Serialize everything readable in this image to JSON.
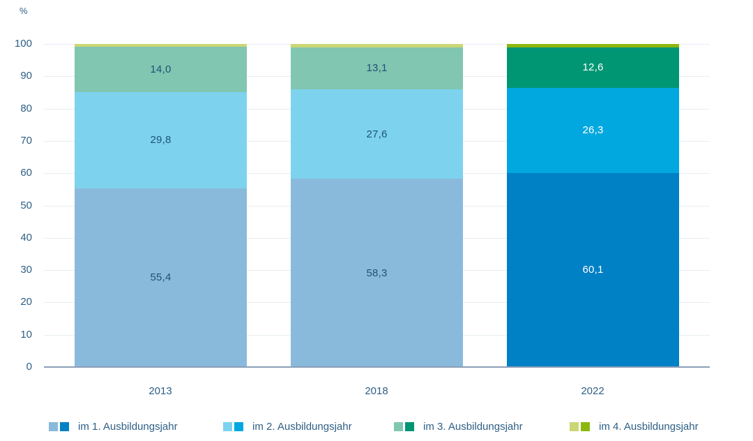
{
  "chart_data": {
    "type": "bar",
    "stacked": true,
    "title": "",
    "unit_label": "%",
    "categories": [
      "2013",
      "2018",
      "2022"
    ],
    "series": [
      {
        "name": "im 1. Ausbildungsjahr",
        "values": [
          55.4,
          58.3,
          60.1
        ],
        "labels": [
          "55,4",
          "58,3",
          "60,1"
        ],
        "color_light": "#8ABADB",
        "color_dark": "#0080C5"
      },
      {
        "name": "im 2. Ausbildungsjahr",
        "values": [
          29.8,
          27.6,
          26.3
        ],
        "labels": [
          "29,8",
          "27,6",
          "26,3"
        ],
        "color_light": "#7DD3EE",
        "color_dark": "#00A8DF"
      },
      {
        "name": "im 3. Ausbildungsjahr",
        "values": [
          14.0,
          13.1,
          12.6
        ],
        "labels": [
          "14,0",
          "13,1",
          "12,6"
        ],
        "color_light": "#80C6B0",
        "color_dark": "#009674"
      },
      {
        "name": "im 4. Ausbildungsjahr",
        "values": [
          0.8,
          1.0,
          1.0
        ],
        "labels": [
          "",
          "",
          ""
        ],
        "color_light": "#CBD774",
        "color_dark": "#8CB80E"
      }
    ],
    "highlighted_category_index": 2,
    "value_label_colors": [
      "#1F5078",
      "#1F5078",
      "#FFFFFF"
    ],
    "y_axis": {
      "ticks": [
        0,
        10,
        20,
        30,
        40,
        50,
        60,
        70,
        80,
        90,
        100
      ],
      "min": 0,
      "max": 100,
      "grid": true
    },
    "legend_position": "bottom"
  },
  "colors": {
    "grid": "#E8EDF2",
    "axis": "#8C9FB6",
    "text": "#2E5F85",
    "background": "#FFFFFF"
  }
}
